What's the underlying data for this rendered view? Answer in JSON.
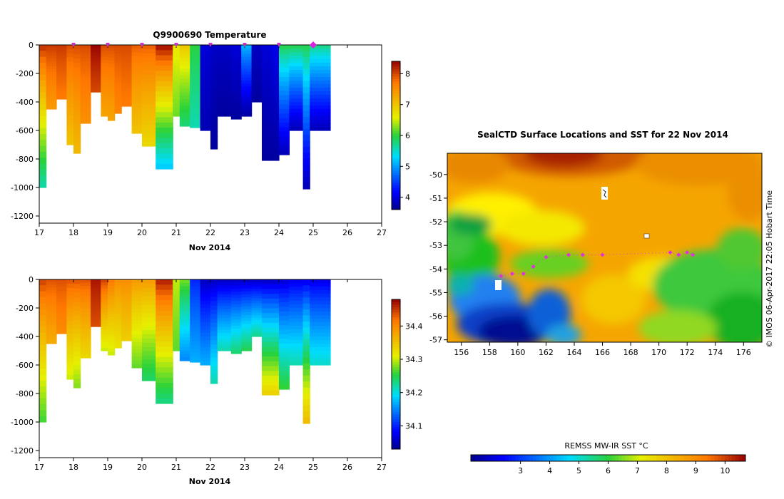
{
  "profile_title": "Q9900690  Temperature",
  "map_title": "SealCTD Surface Locations and SST for 22 Nov 2014",
  "credit": "© IMOS 06-Apr-2017 22:05 Hobart Time",
  "sst_label": "REMSS MW-IR SST °C",
  "x_axis_label": "Nov 2014",
  "chart_data": [
    {
      "type": "heatmap",
      "variable": "Temperature",
      "xlabel": "Nov 2014",
      "xlim": [
        17,
        27
      ],
      "xticks": [
        17,
        18,
        19,
        20,
        21,
        22,
        23,
        24,
        25,
        26,
        27
      ],
      "ylim": [
        -1250,
        0
      ],
      "yticks": [
        0,
        -200,
        -400,
        -600,
        -800,
        -1000,
        -1200
      ],
      "colorbar": {
        "range": [
          3.6,
          8.4
        ],
        "ticks": [
          4,
          5,
          6,
          7,
          8
        ]
      },
      "profiles": [
        {
          "x": 17.0,
          "w": 0.2,
          "depth": 1000,
          "surface": 8.2,
          "bottom": 5.6
        },
        {
          "x": 17.2,
          "w": 0.3,
          "depth": 450,
          "surface": 8.1,
          "bottom": 7.4
        },
        {
          "x": 17.5,
          "w": 0.3,
          "depth": 380,
          "surface": 8.1,
          "bottom": 7.7
        },
        {
          "x": 17.8,
          "w": 0.2,
          "depth": 700,
          "surface": 8.0,
          "bottom": 7.0
        },
        {
          "x": 18.0,
          "w": 0.2,
          "depth": 760,
          "surface": 8.0,
          "bottom": 7.1
        },
        {
          "x": 18.2,
          "w": 0.3,
          "depth": 550,
          "surface": 8.0,
          "bottom": 7.5
        },
        {
          "x": 18.5,
          "w": 0.3,
          "depth": 330,
          "surface": 8.4,
          "bottom": 8.0
        },
        {
          "x": 18.8,
          "w": 0.2,
          "depth": 500,
          "surface": 8.0,
          "bottom": 7.3
        },
        {
          "x": 19.0,
          "w": 0.2,
          "depth": 530,
          "surface": 8.0,
          "bottom": 7.3
        },
        {
          "x": 19.2,
          "w": 0.2,
          "depth": 480,
          "surface": 8.0,
          "bottom": 7.6
        },
        {
          "x": 19.4,
          "w": 0.3,
          "depth": 430,
          "surface": 8.0,
          "bottom": 7.7
        },
        {
          "x": 19.7,
          "w": 0.3,
          "depth": 620,
          "surface": 7.9,
          "bottom": 7.0
        },
        {
          "x": 20.0,
          "w": 0.4,
          "depth": 710,
          "surface": 7.9,
          "bottom": 6.8
        },
        {
          "x": 20.4,
          "w": 0.5,
          "depth": 870,
          "surface": 8.4,
          "bottom": 5.2
        },
        {
          "x": 20.9,
          "w": 0.2,
          "depth": 500,
          "surface": 6.7,
          "bottom": 6.2
        },
        {
          "x": 21.1,
          "w": 0.3,
          "depth": 570,
          "surface": 7.0,
          "bottom": 5.8
        },
        {
          "x": 21.4,
          "w": 0.3,
          "depth": 580,
          "surface": 6.0,
          "bottom": 5.6
        },
        {
          "x": 21.7,
          "w": 0.3,
          "depth": 600,
          "surface": 4.0,
          "bottom": 3.8
        },
        {
          "x": 22.0,
          "w": 0.2,
          "depth": 730,
          "surface": 3.9,
          "bottom": 3.7
        },
        {
          "x": 22.2,
          "w": 0.4,
          "depth": 500,
          "surface": 3.9,
          "bottom": 3.7
        },
        {
          "x": 22.6,
          "w": 0.3,
          "depth": 520,
          "surface": 4.0,
          "bottom": 3.7
        },
        {
          "x": 22.9,
          "w": 0.3,
          "depth": 500,
          "surface": 5.2,
          "bottom": 3.7
        },
        {
          "x": 23.2,
          "w": 0.3,
          "depth": 400,
          "surface": 3.9,
          "bottom": 3.7
        },
        {
          "x": 23.5,
          "w": 0.3,
          "depth": 810,
          "surface": 4.0,
          "bottom": 3.7
        },
        {
          "x": 23.8,
          "w": 0.2,
          "depth": 810,
          "surface": 4.1,
          "bottom": 3.7
        },
        {
          "x": 24.0,
          "w": 0.3,
          "depth": 770,
          "surface": 6.0,
          "bottom": 3.8
        },
        {
          "x": 24.3,
          "w": 0.4,
          "depth": 600,
          "surface": 6.0,
          "bottom": 3.8
        },
        {
          "x": 24.7,
          "w": 0.2,
          "depth": 1010,
          "surface": 6.0,
          "bottom": 3.8
        },
        {
          "x": 24.9,
          "w": 0.6,
          "depth": 600,
          "surface": 5.8,
          "bottom": 3.8
        }
      ]
    },
    {
      "type": "heatmap",
      "variable": "Salinity",
      "xlabel": "Nov 2014",
      "xlim": [
        17,
        27
      ],
      "xticks": [
        17,
        18,
        19,
        20,
        21,
        22,
        23,
        24,
        25,
        26,
        27
      ],
      "ylim": [
        -1250,
        0
      ],
      "yticks": [
        0,
        -200,
        -400,
        -600,
        -800,
        -1000,
        -1200
      ],
      "colorbar": {
        "range": [
          34.03,
          34.48
        ],
        "ticks": [
          34.1,
          34.2,
          34.3,
          34.4
        ]
      },
      "profiles": [
        {
          "x": 17.0,
          "w": 0.2,
          "depth": 1000,
          "surface": 34.45,
          "bottom": 34.26
        },
        {
          "x": 17.2,
          "w": 0.3,
          "depth": 450,
          "surface": 34.44,
          "bottom": 34.37
        },
        {
          "x": 17.5,
          "w": 0.3,
          "depth": 380,
          "surface": 34.44,
          "bottom": 34.4
        },
        {
          "x": 17.8,
          "w": 0.2,
          "depth": 700,
          "surface": 34.44,
          "bottom": 34.3
        },
        {
          "x": 18.0,
          "w": 0.2,
          "depth": 760,
          "surface": 34.44,
          "bottom": 34.28
        },
        {
          "x": 18.2,
          "w": 0.3,
          "depth": 550,
          "surface": 34.44,
          "bottom": 34.33
        },
        {
          "x": 18.5,
          "w": 0.3,
          "depth": 330,
          "surface": 34.47,
          "bottom": 34.44
        },
        {
          "x": 18.8,
          "w": 0.2,
          "depth": 500,
          "surface": 34.45,
          "bottom": 34.3
        },
        {
          "x": 19.0,
          "w": 0.2,
          "depth": 530,
          "surface": 34.42,
          "bottom": 34.3
        },
        {
          "x": 19.2,
          "w": 0.2,
          "depth": 480,
          "surface": 34.4,
          "bottom": 34.32
        },
        {
          "x": 19.4,
          "w": 0.3,
          "depth": 430,
          "surface": 34.4,
          "bottom": 34.34
        },
        {
          "x": 19.7,
          "w": 0.3,
          "depth": 620,
          "surface": 34.39,
          "bottom": 34.27
        },
        {
          "x": 20.0,
          "w": 0.4,
          "depth": 710,
          "surface": 34.39,
          "bottom": 34.24
        },
        {
          "x": 20.4,
          "w": 0.5,
          "depth": 870,
          "surface": 34.47,
          "bottom": 34.23
        },
        {
          "x": 20.9,
          "w": 0.2,
          "depth": 500,
          "surface": 34.3,
          "bottom": 34.27
        },
        {
          "x": 21.1,
          "w": 0.3,
          "depth": 570,
          "surface": 34.28,
          "bottom": 34.15
        },
        {
          "x": 21.4,
          "w": 0.3,
          "depth": 580,
          "surface": 34.1,
          "bottom": 34.17
        },
        {
          "x": 21.7,
          "w": 0.3,
          "depth": 600,
          "surface": 34.05,
          "bottom": 34.17
        },
        {
          "x": 22.0,
          "w": 0.2,
          "depth": 730,
          "surface": 34.05,
          "bottom": 34.22
        },
        {
          "x": 22.2,
          "w": 0.4,
          "depth": 500,
          "surface": 34.05,
          "bottom": 34.22
        },
        {
          "x": 22.6,
          "w": 0.3,
          "depth": 520,
          "surface": 34.05,
          "bottom": 34.24
        },
        {
          "x": 22.9,
          "w": 0.3,
          "depth": 500,
          "surface": 34.05,
          "bottom": 34.25
        },
        {
          "x": 23.2,
          "w": 0.3,
          "depth": 400,
          "surface": 34.05,
          "bottom": 34.23
        },
        {
          "x": 23.5,
          "w": 0.3,
          "depth": 810,
          "surface": 34.05,
          "bottom": 34.34
        },
        {
          "x": 23.8,
          "w": 0.2,
          "depth": 810,
          "surface": 34.05,
          "bottom": 34.34
        },
        {
          "x": 24.0,
          "w": 0.3,
          "depth": 770,
          "surface": 34.06,
          "bottom": 34.26
        },
        {
          "x": 24.3,
          "w": 0.4,
          "depth": 600,
          "surface": 34.07,
          "bottom": 34.22
        },
        {
          "x": 24.7,
          "w": 0.2,
          "depth": 1010,
          "surface": 34.07,
          "bottom": 34.36
        },
        {
          "x": 24.9,
          "w": 0.6,
          "depth": 600,
          "surface": 34.07,
          "bottom": 34.21
        }
      ]
    },
    {
      "type": "heatmap",
      "variable": "SST",
      "title": "SealCTD Surface Locations and SST for 22 Nov 2014",
      "xlim": [
        155,
        177.3
      ],
      "ylim": [
        -57.1,
        -49.1
      ],
      "xticks": [
        156,
        158,
        160,
        162,
        164,
        166,
        168,
        170,
        172,
        174,
        176
      ],
      "yticks": [
        -50,
        -51,
        -52,
        -53,
        -54,
        -55,
        -56,
        -57
      ],
      "colorbar": {
        "label": "REMSS MW-IR SST °C",
        "range": [
          1.3,
          10.7
        ],
        "ticks": [
          3,
          4,
          5,
          6,
          7,
          8,
          9,
          10
        ]
      },
      "seal_locations": [
        {
          "lon": 158.8,
          "lat": -54.3
        },
        {
          "lon": 159.6,
          "lat": -54.2
        },
        {
          "lon": 160.4,
          "lat": -54.2
        },
        {
          "lon": 161.1,
          "lat": -53.9
        },
        {
          "lon": 162.0,
          "lat": -53.5
        },
        {
          "lon": 163.6,
          "lat": -53.4
        },
        {
          "lon": 164.6,
          "lat": -53.4
        },
        {
          "lon": 166.0,
          "lat": -53.4
        },
        {
          "lon": 170.8,
          "lat": -53.3
        },
        {
          "lon": 171.4,
          "lat": -53.4
        },
        {
          "lon": 172.0,
          "lat": -53.3
        },
        {
          "lon": 172.4,
          "lat": -53.4
        }
      ]
    }
  ]
}
